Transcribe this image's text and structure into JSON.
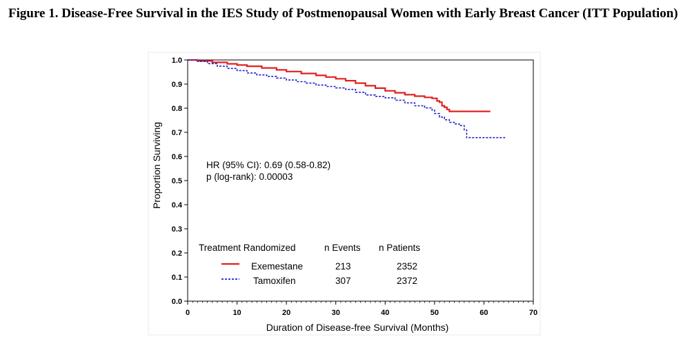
{
  "figure_title": "Figure 1. Disease-Free Survival in the IES Study of Postmenopausal Women with Early Breast Cancer (ITT Population)",
  "chart_data": {
    "type": "line",
    "subtype": "kaplan-meier step",
    "title": "",
    "xlabel": "Duration of Disease-free Survival  (Months)",
    "ylabel": "Proportion Surviving",
    "xlim": [
      0,
      70
    ],
    "ylim": [
      0.0,
      1.0
    ],
    "x_ticks": [
      0,
      10,
      20,
      30,
      40,
      50,
      60,
      70
    ],
    "x_tick_labels": [
      "0",
      "10",
      "20",
      "30",
      "40",
      "50",
      "60",
      "70"
    ],
    "y_ticks": [
      0.0,
      0.1,
      0.2,
      0.3,
      0.4,
      0.5,
      0.6,
      0.7,
      0.8,
      0.9,
      1.0
    ],
    "y_tick_labels": [
      "0.0",
      "0.1",
      "0.2",
      "0.3",
      "0.4",
      "0.5",
      "0.6",
      "0.7",
      "0.8",
      "0.9",
      "1.0"
    ],
    "grid": false,
    "annotations": [
      "HR (95% CI): 0.69 (0.58-0.82)",
      "p (log-rank):  0.00003"
    ],
    "legend": {
      "placement": "bottom-left",
      "headers": [
        "Treatment Randomized",
        "n Events",
        "n Patients"
      ],
      "rows": [
        {
          "name": "Exemestane",
          "events": "213",
          "patients": "2352"
        },
        {
          "name": "Tamoxifen",
          "events": "307",
          "patients": "2372"
        }
      ]
    },
    "series": [
      {
        "name": "Exemestane",
        "color": "#e02020",
        "style": "solid",
        "x": [
          0,
          2,
          5,
          8,
          10,
          12,
          15,
          18,
          20,
          23,
          26,
          28,
          30,
          32,
          34,
          36,
          38,
          40,
          42,
          44,
          46,
          48,
          49.5,
          50.5,
          51,
          51.5,
          52,
          52.5,
          53,
          61.3
        ],
        "y": [
          1.0,
          0.996,
          0.99,
          0.984,
          0.979,
          0.974,
          0.967,
          0.959,
          0.952,
          0.944,
          0.936,
          0.929,
          0.922,
          0.914,
          0.904,
          0.893,
          0.883,
          0.872,
          0.864,
          0.856,
          0.85,
          0.845,
          0.841,
          0.83,
          0.825,
          0.81,
          0.804,
          0.795,
          0.787,
          0.787
        ]
      },
      {
        "name": "Tamoxifen",
        "color": "#2020d0",
        "style": "dashed",
        "x": [
          0,
          2,
          4,
          6,
          8,
          10,
          12,
          14,
          16,
          18,
          20,
          22,
          24,
          26,
          28,
          30,
          32,
          34,
          36,
          38,
          40,
          42,
          44,
          46,
          48,
          49.5,
          50,
          51,
          52,
          53,
          54,
          55,
          56,
          56.5,
          64.3
        ],
        "y": [
          1.0,
          0.994,
          0.985,
          0.974,
          0.965,
          0.956,
          0.946,
          0.938,
          0.932,
          0.925,
          0.917,
          0.91,
          0.904,
          0.896,
          0.89,
          0.884,
          0.878,
          0.866,
          0.855,
          0.849,
          0.843,
          0.833,
          0.822,
          0.81,
          0.801,
          0.792,
          0.778,
          0.763,
          0.752,
          0.741,
          0.735,
          0.728,
          0.71,
          0.678,
          0.678
        ]
      }
    ]
  }
}
